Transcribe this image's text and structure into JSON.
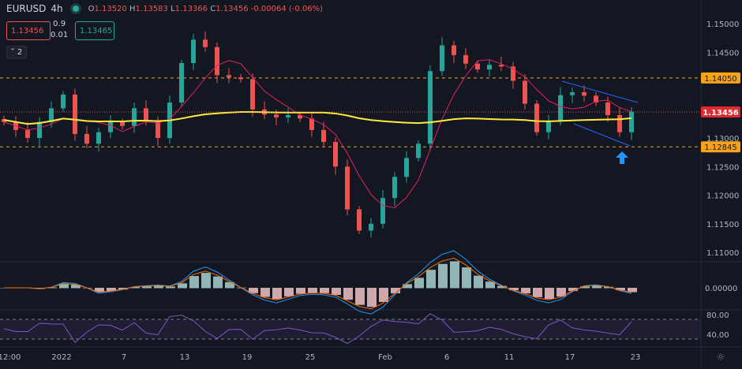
{
  "header": {
    "symbol": "EURUSD",
    "interval": "4h",
    "o_label": "O",
    "o": "1.13520",
    "h_label": "H",
    "h": "1.13583",
    "l_label": "L",
    "l": "1.13366",
    "c_label": "C",
    "c": "1.13456",
    "change": "-0.00064 (-0.06%)"
  },
  "trade": {
    "sell": "1.13456",
    "lot": "0.9",
    "spread": "0.01",
    "buy": "1.13465",
    "collapse": "2"
  },
  "colors": {
    "up": "#26a69a",
    "down": "#ef5350",
    "ma_fast": "#e91e63",
    "ma_slow": "#ffeb3b",
    "level": "#f7a21b",
    "channel": "#2962ff",
    "rsi": "#7e57c2",
    "macd": "#2196f3",
    "signal": "#ff6d00"
  },
  "chart_data": {
    "type": "candlestick",
    "price_ticks": [
      "1.15000",
      "1.14500",
      "1.13000",
      "1.12500",
      "1.12000",
      "1.11500",
      "1.11000"
    ],
    "ylim": [
      1.105,
      1.155
    ],
    "levels": [
      {
        "value": 1.1405,
        "label": "1.14050"
      },
      {
        "value": 1.12845,
        "label": "1.12845"
      }
    ],
    "last_price": {
      "value": 1.13456,
      "label": "1.13456"
    },
    "time_ticks": [
      "12:00",
      "2022",
      "7",
      "13",
      "19",
      "25",
      "Feb",
      "6",
      "11",
      "17",
      "23"
    ],
    "closes": [
      1.1328,
      1.1314,
      1.13,
      1.1328,
      1.1352,
      1.1376,
      1.1307,
      1.129,
      1.131,
      1.1328,
      1.1321,
      1.1352,
      1.133,
      1.13,
      1.1362,
      1.1431,
      1.1472,
      1.1459,
      1.141,
      1.1406,
      1.1403,
      1.135,
      1.1341,
      1.1336,
      1.134,
      1.1334,
      1.1314,
      1.1293,
      1.125,
      1.1175,
      1.1138,
      1.115,
      1.1195,
      1.1232,
      1.1265,
      1.129,
      1.1417,
      1.1462,
      1.1445,
      1.143,
      1.142,
      1.1428,
      1.1425,
      1.14,
      1.136,
      1.131,
      1.133,
      1.1375,
      1.138,
      1.1374,
      1.1362,
      1.134,
      1.131,
      1.1346
    ],
    "macd_ticks": [
      "0.00000"
    ],
    "rsi_ticks": [
      "80.00",
      "40.00"
    ]
  }
}
